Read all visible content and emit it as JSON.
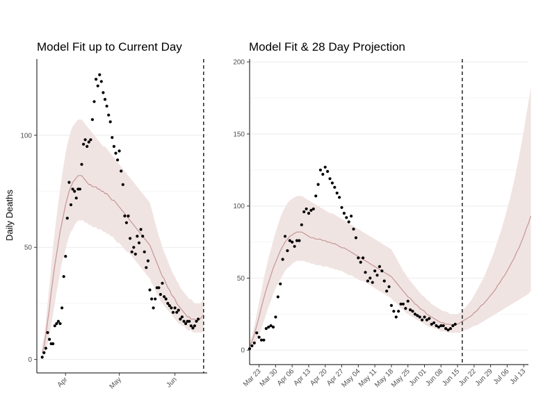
{
  "chart_data": [
    {
      "type": "scatter",
      "title": "Model Fit up to Current Day",
      "xlabel": "",
      "ylabel": "Daily Deaths",
      "x_start": "2020-03-19",
      "x_range": [
        "2020-03-16",
        "2020-06-19"
      ],
      "ylim": [
        -6,
        134
      ],
      "yticks": [
        0,
        50,
        100
      ],
      "xticks": [
        {
          "date": "2020-04-01",
          "label": "Apr"
        },
        {
          "date": "2020-05-01",
          "label": "May"
        },
        {
          "date": "2020-06-01",
          "label": "Jun"
        }
      ],
      "grid": true,
      "current_day": "2020-06-17",
      "observed": [
        1,
        3,
        5,
        12,
        9,
        7,
        7,
        15,
        16,
        17,
        16,
        23,
        37,
        46,
        63,
        79,
        69,
        76,
        75,
        72,
        76,
        76,
        87,
        96,
        98,
        95,
        97,
        98,
        107,
        115,
        125,
        122,
        127,
        124,
        119,
        116,
        113,
        109,
        106,
        99,
        95,
        92,
        89,
        93,
        84,
        78,
        64,
        61,
        64,
        54,
        48,
        50,
        47,
        55,
        52,
        58,
        55,
        48,
        41,
        44,
        31,
        27,
        23,
        27,
        32,
        32,
        29,
        34,
        28,
        27,
        25,
        24,
        23,
        21,
        23,
        21,
        22,
        18,
        19,
        17,
        16,
        17,
        17,
        15,
        14,
        15,
        17,
        18
      ]
    },
    {
      "type": "scatter",
      "title": "Model Fit & 28 Day Projection",
      "xlabel": "",
      "ylabel": "",
      "x_start": "2020-03-19",
      "x_range": [
        "2020-03-19",
        "2020-07-15"
      ],
      "ylim": [
        -10,
        202
      ],
      "yticks": [
        0,
        50,
        100,
        150,
        200
      ],
      "xticks": [
        {
          "date": "2020-03-23",
          "label": "Mar 23"
        },
        {
          "date": "2020-03-30",
          "label": "Mar 30"
        },
        {
          "date": "2020-04-06",
          "label": "Apr 06"
        },
        {
          "date": "2020-04-13",
          "label": "Apr 13"
        },
        {
          "date": "2020-04-20",
          "label": "Apr 20"
        },
        {
          "date": "2020-04-27",
          "label": "Apr 27"
        },
        {
          "date": "2020-05-04",
          "label": "May 04"
        },
        {
          "date": "2020-05-11",
          "label": "May 11"
        },
        {
          "date": "2020-05-18",
          "label": "May 18"
        },
        {
          "date": "2020-05-25",
          "label": "May 25"
        },
        {
          "date": "2020-06-01",
          "label": "Jun 01"
        },
        {
          "date": "2020-06-08",
          "label": "Jun 08"
        },
        {
          "date": "2020-06-15",
          "label": "Jun 15"
        },
        {
          "date": "2020-06-22",
          "label": "Jun 22"
        },
        {
          "date": "2020-06-29",
          "label": "Jun 29"
        },
        {
          "date": "2020-07-06",
          "label": "Jul 06"
        },
        {
          "date": "2020-07-13",
          "label": "Jul 13"
        }
      ],
      "grid": true,
      "current_day": "2020-06-17",
      "observed": [
        1,
        3,
        5,
        12,
        9,
        7,
        7,
        15,
        16,
        17,
        16,
        23,
        37,
        46,
        63,
        79,
        69,
        76,
        75,
        72,
        76,
        76,
        87,
        96,
        98,
        95,
        97,
        98,
        107,
        115,
        125,
        122,
        127,
        124,
        119,
        116,
        113,
        109,
        106,
        99,
        95,
        92,
        89,
        93,
        84,
        78,
        64,
        61,
        64,
        54,
        48,
        50,
        47,
        55,
        52,
        58,
        55,
        48,
        41,
        44,
        31,
        27,
        23,
        27,
        32,
        32,
        29,
        34,
        28,
        27,
        25,
        24,
        23,
        21,
        23,
        21,
        22,
        18,
        19,
        17,
        16,
        17,
        17,
        15,
        14,
        15,
        17,
        18
      ]
    },
    {
      "type": "line",
      "series": [
        {
          "legend": false,
          "values": [
            3,
            6,
            11,
            17,
            23,
            30,
            36,
            42,
            47,
            52,
            57,
            61,
            65,
            69,
            72,
            75,
            77,
            79,
            80,
            81,
            82,
            82,
            82,
            81,
            80,
            79,
            78,
            78,
            77,
            77,
            77,
            76,
            76,
            75,
            75,
            74,
            74,
            73,
            72,
            71,
            71,
            70,
            69,
            68,
            67,
            66,
            65,
            64,
            63,
            62,
            61,
            60,
            59,
            58,
            57,
            56,
            55,
            54,
            53,
            52,
            51,
            49,
            47,
            45,
            43,
            41,
            39,
            37,
            36,
            34,
            32,
            31,
            29,
            28,
            27,
            25,
            24,
            23,
            22,
            21,
            20,
            19,
            19,
            18,
            18,
            18,
            17,
            18,
            18,
            19,
            20,
            21,
            22,
            23,
            24,
            26,
            27,
            29,
            31,
            32,
            34,
            36,
            38,
            40,
            42,
            45,
            47,
            50,
            52,
            55,
            58,
            61,
            64,
            68,
            71,
            75,
            79,
            84,
            88,
            93
          ]
        },
        {
          "legend": false,
          "values": [
            1,
            2,
            4,
            7,
            11,
            15,
            20,
            25,
            30,
            34,
            39,
            43,
            46,
            49,
            52,
            55,
            57,
            58,
            60,
            61,
            62,
            62,
            62,
            62,
            61,
            61,
            60,
            60,
            59,
            59,
            59,
            58,
            58,
            58,
            57,
            57,
            56,
            56,
            55,
            55,
            54,
            53,
            52,
            52,
            51,
            50,
            49,
            48,
            48,
            47,
            46,
            45,
            44,
            43,
            42,
            41,
            40,
            39,
            38,
            37,
            36,
            34,
            33,
            31,
            29,
            28,
            26,
            25,
            24,
            23,
            22,
            21,
            20,
            19,
            18,
            17,
            16,
            16,
            15,
            15,
            14,
            13,
            13,
            13,
            12,
            12,
            12,
            12,
            12,
            12,
            13,
            14,
            14,
            15,
            16,
            17,
            17,
            18,
            19,
            20,
            21,
            22,
            23,
            24,
            25,
            26,
            27,
            28,
            29,
            30,
            31,
            32,
            33,
            34,
            35,
            36,
            37,
            38,
            39,
            41
          ]
        },
        {
          "legend": false,
          "values": [
            6,
            10,
            17,
            25,
            33,
            41,
            50,
            57,
            64,
            70,
            76,
            82,
            87,
            92,
            96,
            99,
            102,
            104,
            105,
            106,
            107,
            107,
            107,
            106,
            105,
            104,
            103,
            102,
            101,
            100,
            99,
            98,
            97,
            96,
            95,
            95,
            94,
            93,
            92,
            91,
            90,
            89,
            88,
            87,
            86,
            85,
            84,
            83,
            82,
            81,
            80,
            79,
            78,
            77,
            76,
            75,
            74,
            73,
            72,
            71,
            70,
            67,
            64,
            61,
            58,
            55,
            53,
            50,
            48,
            46,
            44,
            42,
            40,
            38,
            37,
            35,
            34,
            32,
            31,
            30,
            29,
            28,
            27,
            27,
            26,
            25,
            25,
            25,
            25,
            26,
            27,
            29,
            31,
            33,
            35,
            38,
            41,
            44,
            47,
            50,
            54,
            58,
            62,
            66,
            71,
            76,
            81,
            86,
            92,
            98,
            104,
            111,
            118,
            126,
            134,
            143,
            152,
            162,
            172,
            183
          ]
        }
      ]
    }
  ]
}
